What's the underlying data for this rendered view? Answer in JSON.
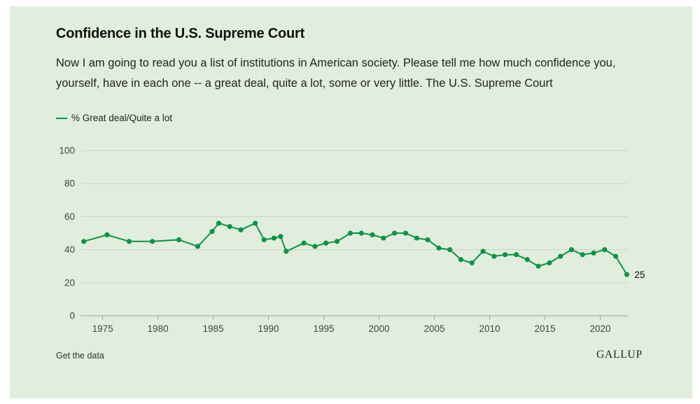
{
  "header": {
    "title": "Confidence in the U.S. Supreme Court",
    "subtitle": "Now I am going to read you a list of institutions in American society. Please tell me how much confidence you, yourself, have in each one -- a great deal, quite a lot, some or very little. The U.S. Supreme Court"
  },
  "footer": {
    "link_label": "Get the data",
    "logo_text": "GALLUP"
  },
  "colors": {
    "background": "#e1eedd",
    "series": "#0b9444",
    "gridline": "#c9d6c5"
  },
  "chart_data": {
    "type": "line",
    "title": "Confidence in the U.S. Supreme Court",
    "xlabel": "",
    "ylabel": "",
    "xlim": [
      1973,
      2022.5
    ],
    "ylim": [
      0,
      100
    ],
    "yticks": [
      0,
      20,
      40,
      60,
      80,
      100
    ],
    "xticks": [
      1975,
      1980,
      1985,
      1990,
      1995,
      2000,
      2005,
      2010,
      2015,
      2020
    ],
    "grid": true,
    "legend_position": "top-left",
    "end_label": "25",
    "series": [
      {
        "name": "% Great deal/Quite a lot",
        "points": [
          [
            1973.3,
            45
          ],
          [
            1975.4,
            49
          ],
          [
            1977.4,
            45
          ],
          [
            1979.5,
            45
          ],
          [
            1981.9,
            46
          ],
          [
            1983.6,
            42
          ],
          [
            1984.9,
            51
          ],
          [
            1985.5,
            56
          ],
          [
            1986.5,
            54
          ],
          [
            1987.5,
            52
          ],
          [
            1988.8,
            56
          ],
          [
            1989.6,
            46
          ],
          [
            1990.5,
            47
          ],
          [
            1991.1,
            48
          ],
          [
            1991.6,
            39
          ],
          [
            1993.2,
            44
          ],
          [
            1994.2,
            42
          ],
          [
            1995.2,
            44
          ],
          [
            1996.2,
            45
          ],
          [
            1997.4,
            50
          ],
          [
            1998.4,
            50
          ],
          [
            1999.4,
            49
          ],
          [
            2000.4,
            47
          ],
          [
            2001.4,
            50
          ],
          [
            2002.4,
            50
          ],
          [
            2003.4,
            47
          ],
          [
            2004.4,
            46
          ],
          [
            2005.4,
            41
          ],
          [
            2006.4,
            40
          ],
          [
            2007.4,
            34
          ],
          [
            2008.4,
            32
          ],
          [
            2009.4,
            39
          ],
          [
            2010.4,
            36
          ],
          [
            2011.4,
            37
          ],
          [
            2012.4,
            37
          ],
          [
            2013.4,
            34
          ],
          [
            2014.4,
            30
          ],
          [
            2015.4,
            32
          ],
          [
            2016.4,
            36
          ],
          [
            2017.4,
            40
          ],
          [
            2018.4,
            37
          ],
          [
            2019.4,
            38
          ],
          [
            2020.4,
            40
          ],
          [
            2021.4,
            36
          ],
          [
            2022.4,
            25
          ]
        ]
      }
    ]
  }
}
